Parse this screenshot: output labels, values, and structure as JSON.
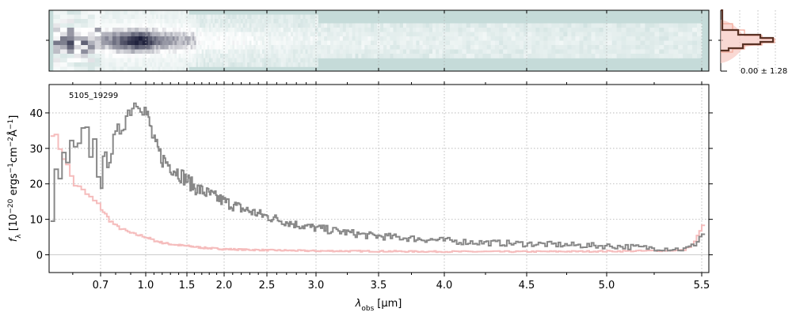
{
  "chart_data": [
    {
      "type": "heatmap",
      "panel": "2d-spectrum",
      "description_colors": {
        "background": "#c5dbd9",
        "low": "#ffffff",
        "high": "#1c1e3a"
      },
      "xlim": [
        0.515,
        5.53
      ],
      "x_scale": "wavelength-warped"
    },
    {
      "type": "line",
      "panel": "1d-spectrum",
      "object_label": "5105_19299",
      "xlabel_prefix": "λ",
      "xlabel_sub": "obs",
      "xlabel_unit": "[μm]",
      "ylabel": "f_λ [10⁻²⁰ ergs⁻¹cm⁻²Å⁻¹]",
      "ylabel_parts": {
        "f": "f",
        "f_sub": "λ",
        "open": " [10",
        "e1": "−20",
        "t1": " ergs",
        "e2": "−1",
        "t2": "cm",
        "e3": "−2",
        "t3": "Å",
        "e4": "−1",
        "close": "]"
      },
      "xlim": [
        0.515,
        5.53
      ],
      "ylim": [
        -5,
        48
      ],
      "x_ticks": [
        0.7,
        1.0,
        1.5,
        2.0,
        2.5,
        3.0,
        3.5,
        4.0,
        4.5,
        5.0,
        5.5
      ],
      "x_tick_labels": [
        "0.7",
        "1.0",
        "1.5",
        "2.0",
        "2.5",
        "3.0",
        "3.5",
        "4.0",
        "4.5",
        "5.0",
        "5.5"
      ],
      "y_ticks": [
        0,
        10,
        20,
        30,
        40
      ],
      "grid": true,
      "series": [
        {
          "role": "flux",
          "color": "#888888",
          "x": [
            0.52,
            0.55,
            0.58,
            0.6,
            0.63,
            0.66,
            0.7,
            0.75,
            0.8,
            0.85,
            0.9,
            0.95,
            1.0,
            1.05,
            1.1,
            1.2,
            1.3,
            1.4,
            1.5,
            1.6,
            1.7,
            1.8,
            1.9,
            2.0,
            2.2,
            2.4,
            2.6,
            2.8,
            3.0,
            3.2,
            3.4,
            3.6,
            3.8,
            4.0,
            4.2,
            4.4,
            4.6,
            4.8,
            5.0,
            5.1,
            5.2,
            5.3,
            5.4,
            5.45,
            5.5
          ],
          "y": [
            15,
            22,
            28,
            26,
            30,
            32,
            24,
            28,
            33,
            38,
            42,
            44,
            40,
            36,
            31,
            27,
            25,
            23,
            21,
            19,
            18,
            17,
            16,
            15,
            13,
            11.5,
            10,
            8.5,
            7.5,
            6.5,
            5.5,
            5.0,
            4.5,
            4.0,
            3.5,
            3.2,
            3.0,
            2.7,
            2.5,
            2.3,
            2.0,
            1.8,
            1.5,
            2.5,
            6
          ]
        },
        {
          "role": "uncertainty",
          "color": "#f5bcbc",
          "x": [
            0.52,
            0.55,
            0.58,
            0.6,
            0.63,
            0.66,
            0.7,
            0.75,
            0.8,
            0.9,
            1.0,
            1.1,
            1.2,
            1.3,
            1.4,
            1.5,
            1.7,
            2.0,
            2.5,
            3.0,
            3.5,
            4.0,
            4.5,
            5.0,
            5.2,
            5.4,
            5.45,
            5.5
          ],
          "y": [
            35,
            30,
            24,
            20,
            18,
            16,
            13,
            10,
            8,
            6,
            5,
            4,
            3.4,
            3,
            2.7,
            2.5,
            2,
            1.6,
            1.3,
            1.1,
            1.0,
            0.9,
            0.9,
            1.0,
            1.1,
            1.3,
            3,
            8
          ]
        }
      ]
    },
    {
      "type": "line",
      "panel": "cross-dispersion-profile",
      "annotation": "0.00 ± 1.28",
      "colors": {
        "profile": "#5a3225",
        "band": "#f7c8c0",
        "model": "#f2a898"
      }
    }
  ]
}
